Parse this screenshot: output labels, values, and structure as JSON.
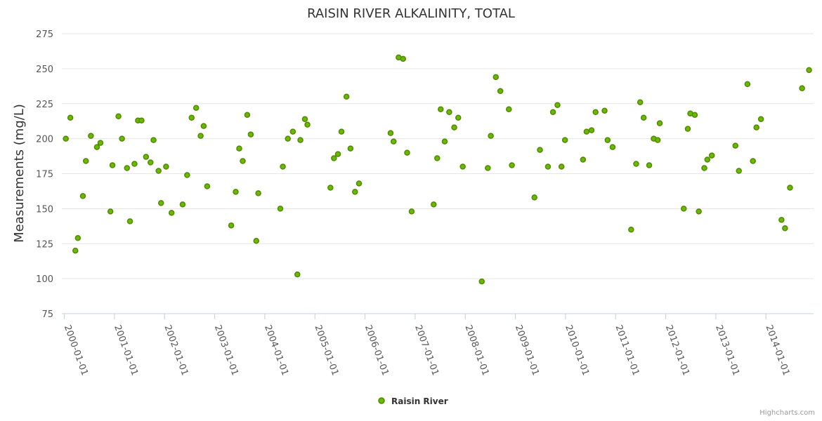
{
  "chart_data": {
    "type": "scatter",
    "title": "RAISIN RIVER ALKALINITY, TOTAL",
    "xlabel": "",
    "ylabel": "Measurements (mg/L)",
    "ylim": [
      75,
      275
    ],
    "yticks": [
      75,
      100,
      125,
      150,
      175,
      200,
      225,
      250,
      275
    ],
    "xticks": [
      "2000-01-01",
      "2001-01-01",
      "2002-01-01",
      "2003-01-01",
      "2004-01-01",
      "2005-01-01",
      "2006-01-01",
      "2007-01-01",
      "2008-01-01",
      "2009-01-01",
      "2010-01-01",
      "2011-01-01",
      "2012-01-01",
      "2013-01-01",
      "2014-01-01"
    ],
    "xlim": [
      1999.95,
      2014.95
    ],
    "grid": "horizontal",
    "legend": "bottom-center",
    "series": [
      {
        "name": "Raisin River",
        "color": "#66bb00",
        "points": [
          [
            2000.03,
            200
          ],
          [
            2000.12,
            215
          ],
          [
            2000.22,
            120
          ],
          [
            2000.27,
            129
          ],
          [
            2000.37,
            159
          ],
          [
            2000.43,
            184
          ],
          [
            2000.53,
            202
          ],
          [
            2000.65,
            194
          ],
          [
            2000.72,
            197
          ],
          [
            2000.92,
            148
          ],
          [
            2000.96,
            181
          ],
          [
            2001.08,
            216
          ],
          [
            2001.15,
            200
          ],
          [
            2001.25,
            179
          ],
          [
            2001.31,
            141
          ],
          [
            2001.4,
            182
          ],
          [
            2001.47,
            213
          ],
          [
            2001.54,
            213
          ],
          [
            2001.63,
            187
          ],
          [
            2001.72,
            183
          ],
          [
            2001.78,
            199
          ],
          [
            2001.88,
            177
          ],
          [
            2001.93,
            154
          ],
          [
            2002.03,
            180
          ],
          [
            2002.14,
            147
          ],
          [
            2002.36,
            153
          ],
          [
            2002.45,
            174
          ],
          [
            2002.54,
            215
          ],
          [
            2002.63,
            222
          ],
          [
            2002.72,
            202
          ],
          [
            2002.78,
            209
          ],
          [
            2002.85,
            166
          ],
          [
            2003.33,
            138
          ],
          [
            2003.42,
            162
          ],
          [
            2003.49,
            193
          ],
          [
            2003.56,
            184
          ],
          [
            2003.65,
            217
          ],
          [
            2003.72,
            203
          ],
          [
            2003.83,
            127
          ],
          [
            2003.87,
            161
          ],
          [
            2004.31,
            150
          ],
          [
            2004.36,
            180
          ],
          [
            2004.46,
            200
          ],
          [
            2004.56,
            205
          ],
          [
            2004.65,
            103
          ],
          [
            2004.71,
            199
          ],
          [
            2004.8,
            214
          ],
          [
            2004.85,
            210
          ],
          [
            2005.31,
            165
          ],
          [
            2005.38,
            186
          ],
          [
            2005.46,
            189
          ],
          [
            2005.53,
            205
          ],
          [
            2005.63,
            230
          ],
          [
            2005.71,
            193
          ],
          [
            2005.8,
            162
          ],
          [
            2005.88,
            168
          ],
          [
            2006.51,
            204
          ],
          [
            2006.57,
            198
          ],
          [
            2006.67,
            258
          ],
          [
            2006.76,
            257
          ],
          [
            2006.84,
            190
          ],
          [
            2006.93,
            148
          ],
          [
            2007.37,
            153
          ],
          [
            2007.44,
            186
          ],
          [
            2007.51,
            221
          ],
          [
            2007.59,
            198
          ],
          [
            2007.68,
            219
          ],
          [
            2007.78,
            208
          ],
          [
            2007.86,
            215
          ],
          [
            2007.95,
            180
          ],
          [
            2008.33,
            98
          ],
          [
            2008.45,
            179
          ],
          [
            2008.51,
            202
          ],
          [
            2008.61,
            244
          ],
          [
            2008.7,
            234
          ],
          [
            2008.87,
            221
          ],
          [
            2008.93,
            181
          ],
          [
            2009.38,
            158
          ],
          [
            2009.49,
            192
          ],
          [
            2009.65,
            180
          ],
          [
            2009.75,
            219
          ],
          [
            2009.84,
            224
          ],
          [
            2009.92,
            180
          ],
          [
            2009.99,
            199
          ],
          [
            2010.35,
            185
          ],
          [
            2010.42,
            205
          ],
          [
            2010.52,
            206
          ],
          [
            2010.6,
            219
          ],
          [
            2010.78,
            220
          ],
          [
            2010.84,
            199
          ],
          [
            2010.94,
            194
          ],
          [
            2011.31,
            135
          ],
          [
            2011.41,
            182
          ],
          [
            2011.49,
            226
          ],
          [
            2011.56,
            215
          ],
          [
            2011.67,
            181
          ],
          [
            2011.76,
            200
          ],
          [
            2011.84,
            199
          ],
          [
            2011.88,
            211
          ],
          [
            2012.36,
            150
          ],
          [
            2012.44,
            207
          ],
          [
            2012.49,
            218
          ],
          [
            2012.58,
            217
          ],
          [
            2012.66,
            148
          ],
          [
            2012.77,
            179
          ],
          [
            2012.83,
            185
          ],
          [
            2012.92,
            188
          ],
          [
            2013.39,
            195
          ],
          [
            2013.46,
            177
          ],
          [
            2013.63,
            239
          ],
          [
            2013.74,
            184
          ],
          [
            2013.81,
            208
          ],
          [
            2013.9,
            214
          ],
          [
            2014.31,
            142
          ],
          [
            2014.38,
            136
          ],
          [
            2014.48,
            165
          ],
          [
            2014.72,
            236
          ],
          [
            2014.86,
            249
          ]
        ]
      }
    ]
  },
  "credit": "Highcharts.com"
}
